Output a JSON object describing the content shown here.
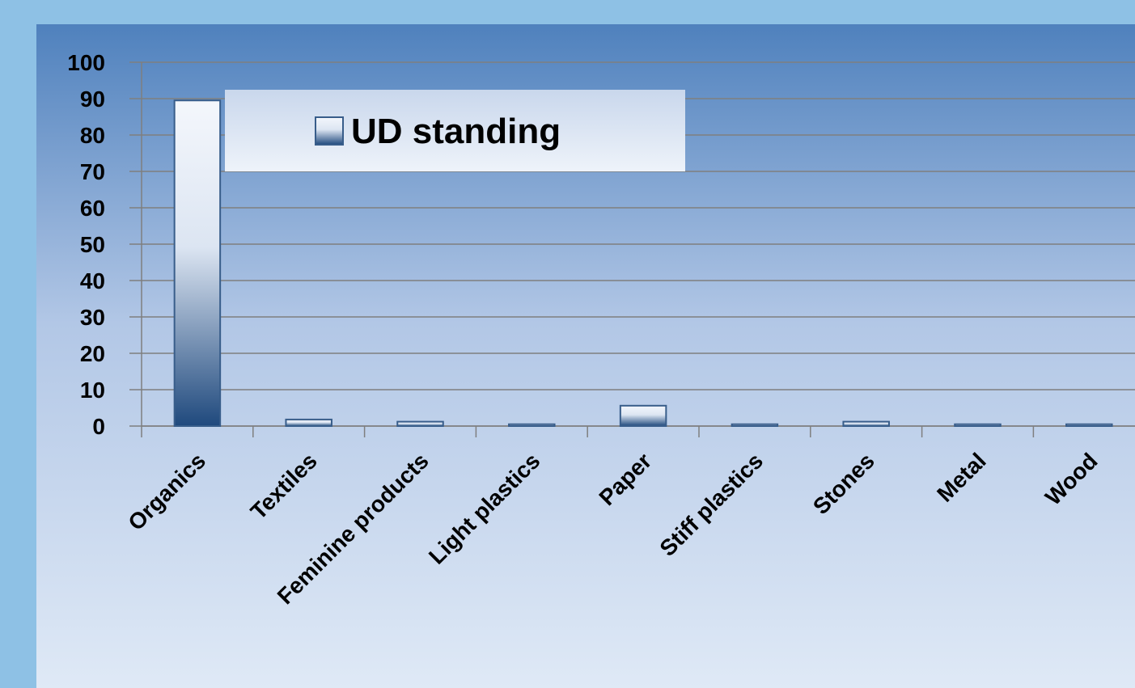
{
  "chart_data": {
    "type": "bar",
    "categories": [
      "Organics",
      "Textiles",
      "Feminine products",
      "Light plastics",
      "Paper",
      "Stiff plastics",
      "Stones",
      "Metal",
      "Wood"
    ],
    "series": [
      {
        "name": "UD standing",
        "color": "#385d8a",
        "values": [
          89.5,
          1.8,
          1.2,
          0.5,
          5.6,
          0.5,
          1.2,
          0.5,
          0.5
        ]
      }
    ],
    "ylim": [
      0,
      100
    ],
    "yticks": [
      0,
      10,
      20,
      30,
      40,
      50,
      60,
      70,
      80,
      90,
      100
    ],
    "grid": true,
    "legend": "top"
  }
}
